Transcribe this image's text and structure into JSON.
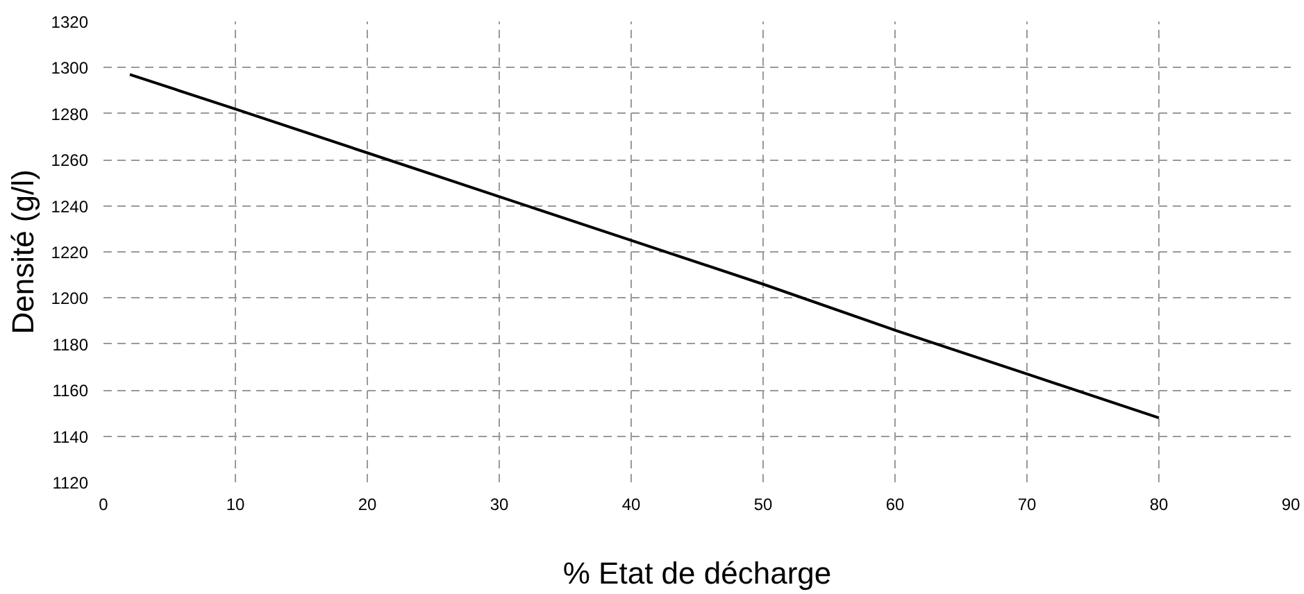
{
  "chart_data": {
    "type": "line",
    "xlabel": "% Etat de décharge",
    "ylabel": "Densité (g/l)",
    "x": [
      2,
      10,
      20,
      30,
      40,
      50,
      60,
      70,
      80
    ],
    "series": [
      {
        "color": "#000000",
        "values": [
          1297,
          1282,
          1263,
          1244,
          1225,
          1206,
          1186,
          1167,
          1148
        ]
      }
    ],
    "xlim": [
      0,
      90
    ],
    "xticks": [
      0,
      10,
      20,
      30,
      40,
      50,
      60,
      70,
      80,
      90
    ],
    "ylim": [
      1120,
      1320
    ],
    "yticks": [
      1120,
      1140,
      1160,
      1180,
      1200,
      1220,
      1240,
      1260,
      1280,
      1300,
      1320
    ],
    "grid": true
  }
}
